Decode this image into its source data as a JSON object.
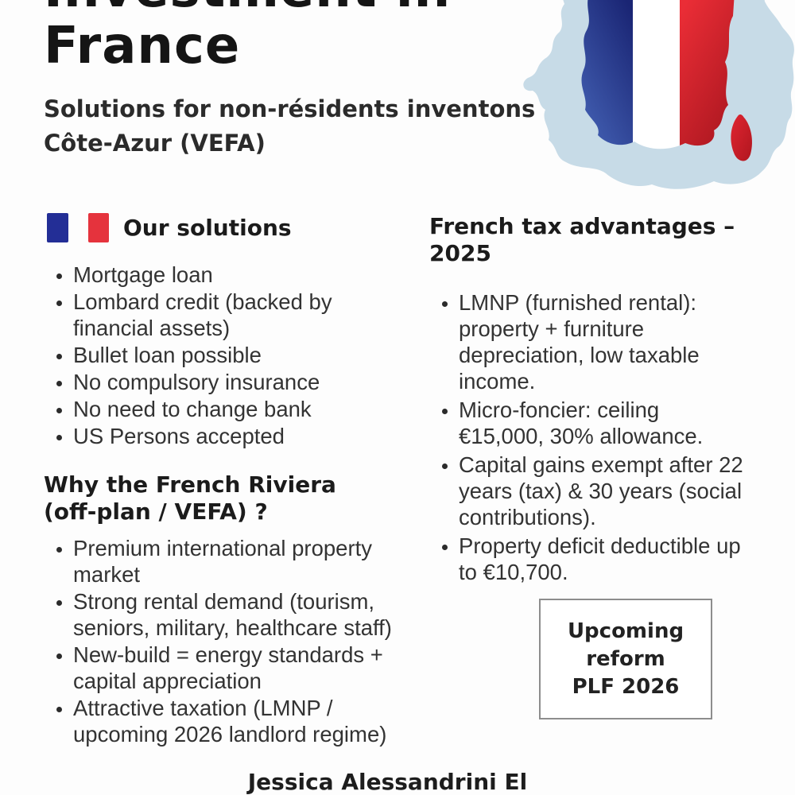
{
  "header": {
    "title_lines": [
      "Investment in",
      "France"
    ],
    "subtitle_lines": [
      "Solutions for non-résidents inventons",
      "Côte-Azur (VEFA)"
    ]
  },
  "solutions": {
    "heading": "Our solutions",
    "items": [
      "Mortgage loan",
      "Lombard credit (backed by financial assets)",
      "Bullet loan possible",
      "No compulsory insurance",
      "No need to change bank",
      "US Persons accepted"
    ]
  },
  "riviera": {
    "heading": "Why the French Riviera (off-plan / VEFA) ?",
    "items": [
      "Premium international property market",
      "Strong rental demand (tourism, seniors, military, healthcare staff)",
      "New-build = energy standards + capital appreciation",
      "Attractive taxation (LMNP / upcoming 2026 landlord regime)"
    ]
  },
  "tax": {
    "heading": "French tax advantages – 2025",
    "items": [
      "LMNP (furnished rental): property + furniture depreciation, low taxable income.",
      "Micro-foncier: ceiling €15,000, 30% allowance.",
      "Capital gains exempt after 22 years (tax) & 30 years (social contributions).",
      "Property deficit deductible up to €10,700."
    ]
  },
  "reform_box": {
    "lines": [
      "Upcoming",
      "reform",
      "PLF 2026"
    ]
  },
  "footer": {
    "name": "Jessica Alessandrini El"
  },
  "icons": {
    "french-flag-icon": "two vertical bars (blue, red) with white gap",
    "france-map-icon": "France silhouette with tricolor flag fill and red Corsica"
  },
  "colors": {
    "flag_blue": "#232e96",
    "flag_red": "#e5333d",
    "map_land": "#c7dbe7",
    "map_flag_blue_dark": "#1a2574",
    "map_flag_blue_light": "#4563b6",
    "map_flag_red_bright": "#ea2d36",
    "map_flag_red_dark": "#a3141d",
    "heading_text": "#1b1b1b",
    "body_text": "#333333",
    "box_border": "#8d8d8d"
  }
}
